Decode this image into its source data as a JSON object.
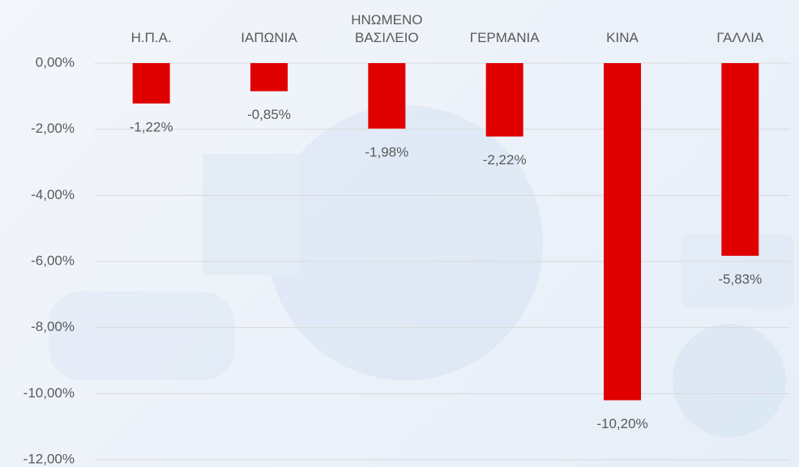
{
  "chart_data": {
    "type": "bar",
    "categories": [
      "Η.Π.Α.",
      "ΙΑΠΩΝΙΑ",
      "ΗΝΩΜΕΝΟ ΒΑΣΙΛΕΙΟ",
      "ΓΕΡΜΑΝΙΑ",
      "ΚΙΝΑ",
      "ΓΑΛΛΙΑ"
    ],
    "values": [
      -1.22,
      -0.85,
      -1.98,
      -2.22,
      -10.2,
      -5.83
    ],
    "value_labels": [
      "-1,22%",
      "-0,85%",
      "-1,98%",
      "-2,22%",
      "-10,20%",
      "-5,83%"
    ],
    "color": "#e00000",
    "ylim": [
      -12,
      0
    ],
    "yticks": [
      {
        "value": 0,
        "label": "0,00%"
      },
      {
        "value": -2,
        "label": "-2,00%"
      },
      {
        "value": -4,
        "label": "-4,00%"
      },
      {
        "value": -6,
        "label": "-6,00%"
      },
      {
        "value": -8,
        "label": "-8,00%"
      },
      {
        "value": -10,
        "label": "-10,00%"
      },
      {
        "value": -12,
        "label": "-12,00%"
      }
    ],
    "grid": true
  }
}
